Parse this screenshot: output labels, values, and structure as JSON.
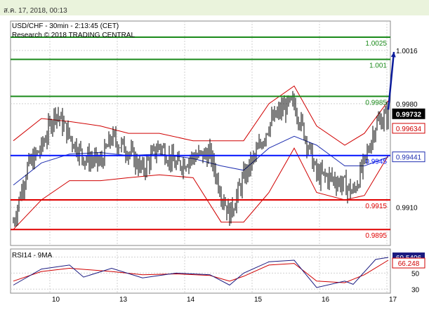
{
  "header": {
    "timestamp": "ส.ค. 17, 2018, 00:13"
  },
  "chart_title": "USD/CHF - 30min - 2:13:45 (CET)",
  "chart_subtitle": "Research © 2018 TRADING CENTRAL",
  "colors": {
    "background": "#ffffff",
    "top_bar": "#eaf3dc",
    "grid": "#d0d0d0",
    "candle": "#000000",
    "bollinger": "#d00000",
    "moving_average": "#1f2fb0",
    "resistance": "#1a8a1a",
    "pivot": "#0010ff",
    "support": "#e00000",
    "forecast_arrow": "#0a1a9a",
    "last_price_tag": "#000000",
    "rsi_line": "#1a1a80",
    "rsi_ma": "#d00000"
  },
  "chart_data": {
    "type": "candlestick",
    "instrument": "USD/CHF",
    "timeframe": "30min",
    "x_ticks": [
      "10",
      "13",
      "14",
      "15",
      "16",
      "17"
    ],
    "y_ticks": [
      0.991,
      0.998,
      1.0016
    ],
    "ylim": [
      0.98842,
      1.00359
    ],
    "x_start": "2018-08-09 11:00",
    "bar_minutes": 30,
    "levels": [
      {
        "label": "1.0025",
        "value": 1.0025,
        "role": "resistance"
      },
      {
        "label": "1.001",
        "value": 1.001,
        "role": "resistance"
      },
      {
        "label": "0.9985",
        "value": 0.9985,
        "role": "resistance"
      },
      {
        "label": "0.9945",
        "value": 0.9945,
        "role": "pivot"
      },
      {
        "label": "0.9915",
        "value": 0.9915,
        "role": "support"
      },
      {
        "label": "0.9895",
        "value": 0.9895,
        "role": "support"
      }
    ],
    "price_tags": [
      {
        "label": "0.99732",
        "value": 0.99732,
        "role": "last"
      },
      {
        "label": "0.99634",
        "value": 0.99634,
        "role": "bollinger"
      },
      {
        "label": "0.99441",
        "value": 0.99441,
        "role": "moving_average"
      }
    ],
    "forecast": {
      "from": {
        "time": "2018-08-17 00:30",
        "value": 0.9976
      },
      "to": {
        "time": "2018-08-17 02:30",
        "value": 1.0015
      }
    },
    "close_path": [
      {
        "time": "2018-08-09 11:00",
        "value": 0.99
      },
      {
        "time": "2018-08-09 16:00",
        "value": 0.9937
      },
      {
        "time": "2018-08-09 21:00",
        "value": 0.995
      },
      {
        "time": "2018-08-10 02:00",
        "value": 0.9975
      },
      {
        "time": "2018-08-10 07:00",
        "value": 0.9958
      },
      {
        "time": "2018-08-10 12:00",
        "value": 0.9944
      },
      {
        "time": "2018-08-10 18:00",
        "value": 0.994
      },
      {
        "time": "2018-08-10 22:00",
        "value": 0.9957
      },
      {
        "time": "2018-08-13 04:00",
        "value": 0.9948
      },
      {
        "time": "2018-08-13 09:00",
        "value": 0.9935
      },
      {
        "time": "2018-08-13 15:00",
        "value": 0.9952
      },
      {
        "time": "2018-08-13 21:00",
        "value": 0.9938
      },
      {
        "time": "2018-08-14 03:00",
        "value": 0.9944
      },
      {
        "time": "2018-08-14 09:00",
        "value": 0.9946
      },
      {
        "time": "2018-08-14 13:00",
        "value": 0.992
      },
      {
        "time": "2018-08-14 16:00",
        "value": 0.9905
      },
      {
        "time": "2018-08-14 21:00",
        "value": 0.993
      },
      {
        "time": "2018-08-15 02:00",
        "value": 0.9948
      },
      {
        "time": "2018-08-15 06:00",
        "value": 0.9966
      },
      {
        "time": "2018-08-15 11:00",
        "value": 0.9977
      },
      {
        "time": "2018-08-15 15:00",
        "value": 0.998
      },
      {
        "time": "2018-08-15 19:00",
        "value": 0.9958
      },
      {
        "time": "2018-08-15 23:00",
        "value": 0.9932
      },
      {
        "time": "2018-08-16 04:00",
        "value": 0.993
      },
      {
        "time": "2018-08-16 09:00",
        "value": 0.9925
      },
      {
        "time": "2018-08-16 12:00",
        "value": 0.992
      },
      {
        "time": "2018-08-16 16:00",
        "value": 0.994
      },
      {
        "time": "2018-08-16 20:00",
        "value": 0.9966
      },
      {
        "time": "2018-08-17 00:30",
        "value": 0.9973
      }
    ],
    "bollinger_upper": [
      {
        "time": "2018-08-09 11:00",
        "value": 0.9955
      },
      {
        "time": "2018-08-09 21:00",
        "value": 0.997
      },
      {
        "time": "2018-08-10 07:00",
        "value": 0.9968
      },
      {
        "time": "2018-08-10 18:00",
        "value": 0.9965
      },
      {
        "time": "2018-08-13 04:00",
        "value": 0.996
      },
      {
        "time": "2018-08-13 15:00",
        "value": 0.996
      },
      {
        "time": "2018-08-14 03:00",
        "value": 0.9955
      },
      {
        "time": "2018-08-14 13:00",
        "value": 0.9955
      },
      {
        "time": "2018-08-14 21:00",
        "value": 0.9955
      },
      {
        "time": "2018-08-15 06:00",
        "value": 0.998
      },
      {
        "time": "2018-08-15 15:00",
        "value": 0.9992
      },
      {
        "time": "2018-08-15 23:00",
        "value": 0.9965
      },
      {
        "time": "2018-08-16 09:00",
        "value": 0.9952
      },
      {
        "time": "2018-08-16 16:00",
        "value": 0.996
      },
      {
        "time": "2018-08-17 00:30",
        "value": 0.9982
      }
    ],
    "bollinger_lower": [
      {
        "time": "2018-08-09 11:00",
        "value": 0.9895
      },
      {
        "time": "2018-08-09 21:00",
        "value": 0.9915
      },
      {
        "time": "2018-08-10 07:00",
        "value": 0.9928
      },
      {
        "time": "2018-08-10 18:00",
        "value": 0.9928
      },
      {
        "time": "2018-08-13 04:00",
        "value": 0.993
      },
      {
        "time": "2018-08-13 15:00",
        "value": 0.9932
      },
      {
        "time": "2018-08-14 03:00",
        "value": 0.993
      },
      {
        "time": "2018-08-14 13:00",
        "value": 0.99
      },
      {
        "time": "2018-08-14 21:00",
        "value": 0.99
      },
      {
        "time": "2018-08-15 06:00",
        "value": 0.992
      },
      {
        "time": "2018-08-15 15:00",
        "value": 0.995
      },
      {
        "time": "2018-08-15 23:00",
        "value": 0.992
      },
      {
        "time": "2018-08-16 09:00",
        "value": 0.9915
      },
      {
        "time": "2018-08-16 16:00",
        "value": 0.9918
      },
      {
        "time": "2018-08-17 00:30",
        "value": 0.9945
      }
    ],
    "moving_average": [
      {
        "time": "2018-08-09 11:00",
        "value": 0.9925
      },
      {
        "time": "2018-08-09 21:00",
        "value": 0.994
      },
      {
        "time": "2018-08-10 07:00",
        "value": 0.9946
      },
      {
        "time": "2018-08-10 18:00",
        "value": 0.9947
      },
      {
        "time": "2018-08-13 04:00",
        "value": 0.9945
      },
      {
        "time": "2018-08-13 15:00",
        "value": 0.9946
      },
      {
        "time": "2018-08-14 03:00",
        "value": 0.9943
      },
      {
        "time": "2018-08-14 13:00",
        "value": 0.9938
      },
      {
        "time": "2018-08-14 21:00",
        "value": 0.9935
      },
      {
        "time": "2018-08-15 06:00",
        "value": 0.995
      },
      {
        "time": "2018-08-15 15:00",
        "value": 0.9958
      },
      {
        "time": "2018-08-15 23:00",
        "value": 0.9952
      },
      {
        "time": "2018-08-16 09:00",
        "value": 0.9938
      },
      {
        "time": "2018-08-16 16:00",
        "value": 0.9938
      },
      {
        "time": "2018-08-17 00:30",
        "value": 0.9944
      }
    ],
    "rsi": {
      "label": "RSI14 - 9MA",
      "y_ticks": [
        30,
        50,
        70
      ],
      "ylim": [
        25,
        80
      ],
      "last_rsi": "69.5406",
      "last_ma": "66.248",
      "rsi_path": [
        {
          "time": "2018-08-09 11:00",
          "value": 35
        },
        {
          "time": "2018-08-09 21:00",
          "value": 55
        },
        {
          "time": "2018-08-10 07:00",
          "value": 60
        },
        {
          "time": "2018-08-10 12:00",
          "value": 45
        },
        {
          "time": "2018-08-10 22:00",
          "value": 56
        },
        {
          "time": "2018-08-13 09:00",
          "value": 44
        },
        {
          "time": "2018-08-13 21:00",
          "value": 50
        },
        {
          "time": "2018-08-14 09:00",
          "value": 48
        },
        {
          "time": "2018-08-14 16:00",
          "value": 35
        },
        {
          "time": "2018-08-14 21:00",
          "value": 50
        },
        {
          "time": "2018-08-15 06:00",
          "value": 64
        },
        {
          "time": "2018-08-15 15:00",
          "value": 66
        },
        {
          "time": "2018-08-15 23:00",
          "value": 32
        },
        {
          "time": "2018-08-16 09:00",
          "value": 40
        },
        {
          "time": "2018-08-16 12:00",
          "value": 36
        },
        {
          "time": "2018-08-16 20:00",
          "value": 67
        },
        {
          "time": "2018-08-17 00:30",
          "value": 69.5
        }
      ],
      "ma_path": [
        {
          "time": "2018-08-09 11:00",
          "value": 40
        },
        {
          "time": "2018-08-09 21:00",
          "value": 52
        },
        {
          "time": "2018-08-10 07:00",
          "value": 56
        },
        {
          "time": "2018-08-10 22:00",
          "value": 52
        },
        {
          "time": "2018-08-13 09:00",
          "value": 48
        },
        {
          "time": "2018-08-13 21:00",
          "value": 49
        },
        {
          "time": "2018-08-14 09:00",
          "value": 47
        },
        {
          "time": "2018-08-14 16:00",
          "value": 40
        },
        {
          "time": "2018-08-14 21:00",
          "value": 46
        },
        {
          "time": "2018-08-15 06:00",
          "value": 60
        },
        {
          "time": "2018-08-15 15:00",
          "value": 62
        },
        {
          "time": "2018-08-15 23:00",
          "value": 40
        },
        {
          "time": "2018-08-16 09:00",
          "value": 38
        },
        {
          "time": "2018-08-16 16:00",
          "value": 48
        },
        {
          "time": "2018-08-17 00:30",
          "value": 66
        }
      ]
    }
  }
}
